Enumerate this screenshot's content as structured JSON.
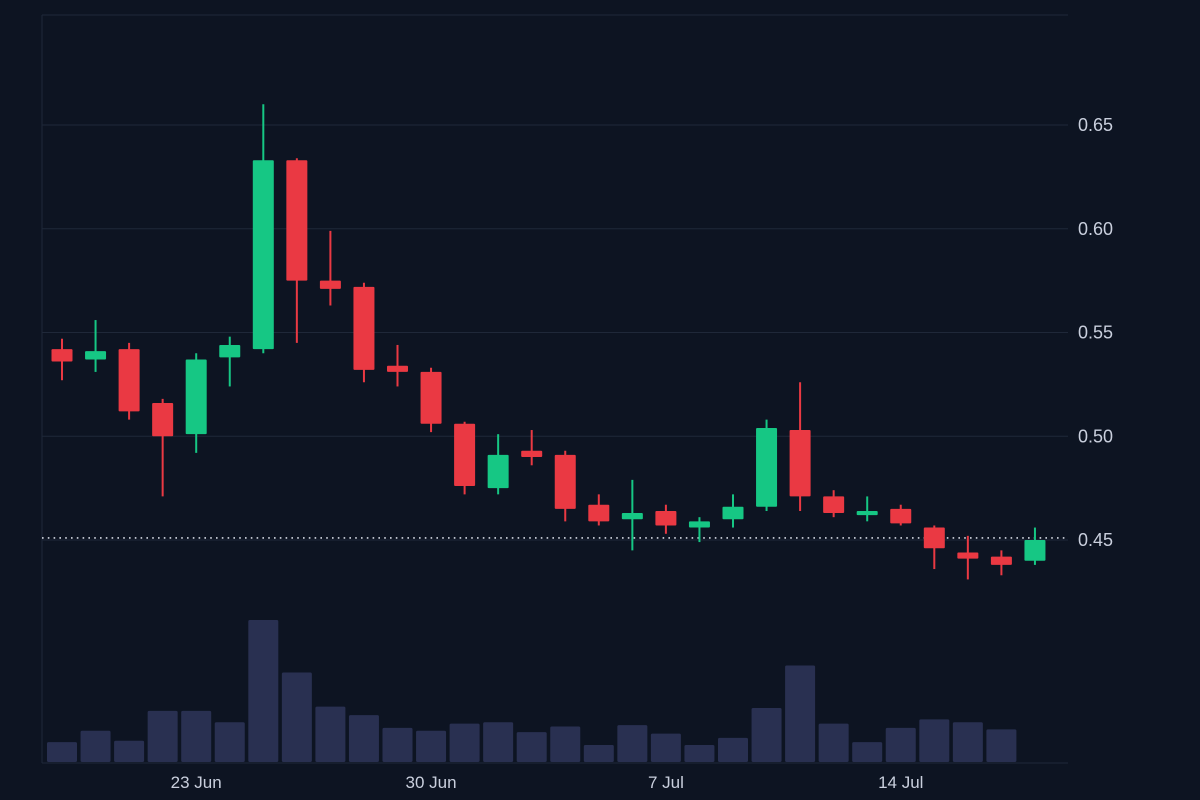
{
  "chart_data": {
    "type": "candlestick",
    "title": "",
    "grid": true,
    "legend": false,
    "ylim": [
      0.425,
      0.672
    ],
    "current_price": 0.451,
    "y_axis": {
      "gridlines": [
        {
          "value": 0.65,
          "label": "0.65"
        },
        {
          "value": 0.6,
          "label": "0.60"
        },
        {
          "value": 0.55,
          "label": "0.55"
        },
        {
          "value": 0.5,
          "label": "0.50"
        },
        {
          "value": 0.45,
          "label": "0.45"
        }
      ]
    },
    "x_axis": {
      "ticks": [
        {
          "index": 4,
          "label": "23 Jun"
        },
        {
          "index": 11,
          "label": "30 Jun"
        },
        {
          "index": 18,
          "label": "7 Jul"
        },
        {
          "index": 25,
          "label": "14 Jul"
        }
      ]
    },
    "candles": [
      {
        "date": "19 Jun",
        "o": 0.542,
        "h": 0.547,
        "l": 0.527,
        "c": 0.536
      },
      {
        "date": "20 Jun",
        "o": 0.537,
        "h": 0.556,
        "l": 0.531,
        "c": 0.541
      },
      {
        "date": "21 Jun",
        "o": 0.542,
        "h": 0.545,
        "l": 0.508,
        "c": 0.512
      },
      {
        "date": "22 Jun",
        "o": 0.516,
        "h": 0.518,
        "l": 0.471,
        "c": 0.5
      },
      {
        "date": "23 Jun",
        "o": 0.501,
        "h": 0.54,
        "l": 0.492,
        "c": 0.537
      },
      {
        "date": "24 Jun",
        "o": 0.538,
        "h": 0.548,
        "l": 0.524,
        "c": 0.544
      },
      {
        "date": "25 Jun",
        "o": 0.542,
        "h": 0.66,
        "l": 0.54,
        "c": 0.633
      },
      {
        "date": "26 Jun",
        "o": 0.633,
        "h": 0.634,
        "l": 0.545,
        "c": 0.575
      },
      {
        "date": "27 Jun",
        "o": 0.575,
        "h": 0.599,
        "l": 0.563,
        "c": 0.571
      },
      {
        "date": "28 Jun",
        "o": 0.572,
        "h": 0.574,
        "l": 0.526,
        "c": 0.532
      },
      {
        "date": "29 Jun",
        "o": 0.534,
        "h": 0.544,
        "l": 0.524,
        "c": 0.531
      },
      {
        "date": "30 Jun",
        "o": 0.531,
        "h": 0.533,
        "l": 0.502,
        "c": 0.506
      },
      {
        "date": "1 Jul",
        "o": 0.506,
        "h": 0.507,
        "l": 0.472,
        "c": 0.476
      },
      {
        "date": "2 Jul",
        "o": 0.475,
        "h": 0.501,
        "l": 0.472,
        "c": 0.491
      },
      {
        "date": "3 Jul",
        "o": 0.493,
        "h": 0.503,
        "l": 0.486,
        "c": 0.49
      },
      {
        "date": "4 Jul",
        "o": 0.491,
        "h": 0.493,
        "l": 0.459,
        "c": 0.465
      },
      {
        "date": "5 Jul",
        "o": 0.467,
        "h": 0.472,
        "l": 0.457,
        "c": 0.459
      },
      {
        "date": "6 Jul",
        "o": 0.46,
        "h": 0.479,
        "l": 0.445,
        "c": 0.463
      },
      {
        "date": "7 Jul",
        "o": 0.464,
        "h": 0.467,
        "l": 0.453,
        "c": 0.457
      },
      {
        "date": "8 Jul",
        "o": 0.456,
        "h": 0.461,
        "l": 0.449,
        "c": 0.459
      },
      {
        "date": "9 Jul",
        "o": 0.46,
        "h": 0.472,
        "l": 0.456,
        "c": 0.466
      },
      {
        "date": "10 Jul",
        "o": 0.466,
        "h": 0.508,
        "l": 0.464,
        "c": 0.504
      },
      {
        "date": "11 Jul",
        "o": 0.503,
        "h": 0.526,
        "l": 0.464,
        "c": 0.471
      },
      {
        "date": "12 Jul",
        "o": 0.471,
        "h": 0.474,
        "l": 0.461,
        "c": 0.463
      },
      {
        "date": "13 Jul",
        "o": 0.462,
        "h": 0.471,
        "l": 0.459,
        "c": 0.464
      },
      {
        "date": "14 Jul",
        "o": 0.465,
        "h": 0.467,
        "l": 0.457,
        "c": 0.458
      },
      {
        "date": "15 Jul",
        "o": 0.456,
        "h": 0.457,
        "l": 0.436,
        "c": 0.446
      },
      {
        "date": "16 Jul",
        "o": 0.444,
        "h": 0.452,
        "l": 0.431,
        "c": 0.441
      },
      {
        "date": "17 Jul",
        "o": 0.442,
        "h": 0.445,
        "l": 0.433,
        "c": 0.438
      },
      {
        "date": "18 Jul",
        "o": 0.44,
        "h": 0.456,
        "l": 0.438,
        "c": 0.45
      }
    ],
    "volume": [
      0.14,
      0.22,
      0.15,
      0.36,
      0.36,
      0.28,
      1.0,
      0.63,
      0.39,
      0.33,
      0.24,
      0.22,
      0.27,
      0.28,
      0.21,
      0.25,
      0.12,
      0.26,
      0.2,
      0.12,
      0.17,
      0.38,
      0.68,
      0.27,
      0.14,
      0.24,
      0.3,
      0.28,
      0.23,
      0
    ],
    "colors": {
      "background": "#0d1422",
      "grid": "#1f2839",
      "up": "#16c784",
      "down": "#ea3943",
      "volume": "#293051",
      "axis_text": "#c9cfdd",
      "price_line": "#d5dae4"
    }
  }
}
